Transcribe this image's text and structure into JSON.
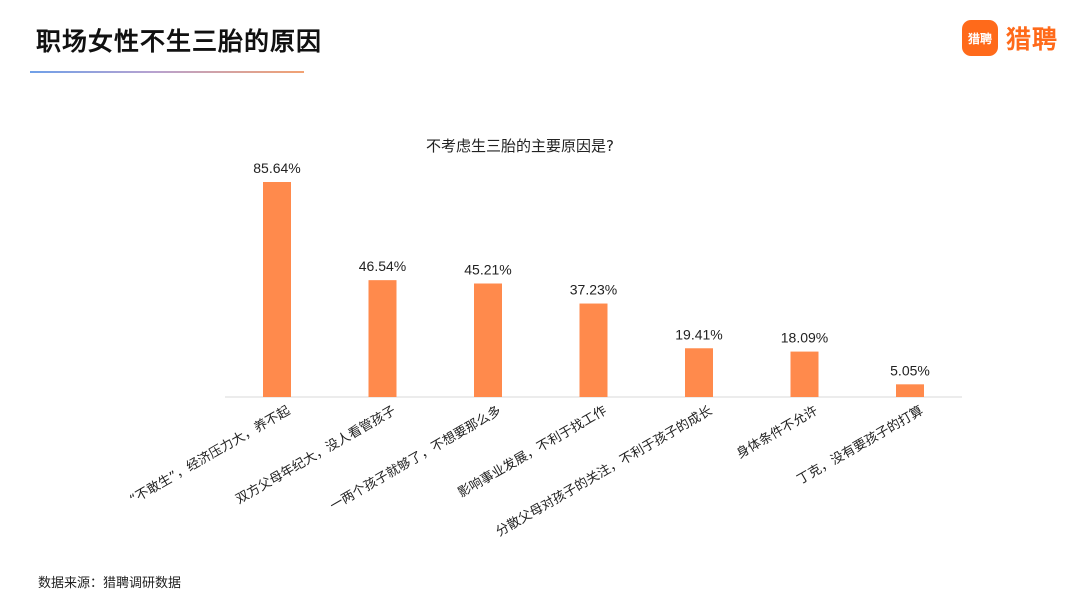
{
  "header": {
    "title": "职场女性不生三胎的原因",
    "brand_mark": "猎聘",
    "brand_name": "猎聘",
    "accent_color": "#FF6A1A"
  },
  "chart_data": {
    "type": "bar",
    "title": "不考虑生三胎的主要原因是?",
    "categories": [
      "“不敢生”，经济压力大，养不起",
      "双方父母年纪大，没人看管孩子",
      "一两个孩子就够了，不想要那么多",
      "影响事业发展，不利于找工作",
      "分散父母对孩子的关注，不利于孩子的成长",
      "身体条件不允许",
      "丁克，没有要孩子的打算"
    ],
    "values": [
      85.64,
      46.54,
      45.21,
      37.23,
      19.41,
      18.09,
      5.05
    ],
    "data_labels": [
      "85.64%",
      "46.54%",
      "45.21%",
      "37.23%",
      "19.41%",
      "18.09%",
      "5.05%"
    ],
    "bar_color": "#FF8A4C",
    "grid": false,
    "legend": "none"
  },
  "footer": {
    "source": "数据来源：猎聘调研数据"
  }
}
